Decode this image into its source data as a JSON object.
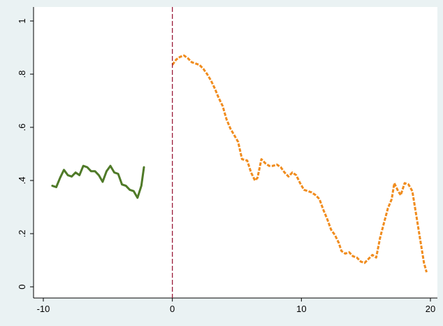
{
  "chart_data": {
    "type": "line",
    "title": "",
    "xlabel": "",
    "ylabel": "",
    "xlim": [
      -10,
      20
    ],
    "ylim": [
      0,
      1
    ],
    "grid": false,
    "legend": "none",
    "xticks": [
      {
        "value": -10,
        "label": "-10"
      },
      {
        "value": 0,
        "label": "0"
      },
      {
        "value": 10,
        "label": "10"
      },
      {
        "value": 20,
        "label": "20"
      }
    ],
    "yticks": [
      {
        "value": 0,
        "label": "0"
      },
      {
        "value": 0.2,
        "label": ".2"
      },
      {
        "value": 0.4,
        "label": ".4"
      },
      {
        "value": 0.6,
        "label": ".6"
      },
      {
        "value": 0.8,
        "label": ".8"
      },
      {
        "value": 1,
        "label": "1"
      }
    ],
    "vline": {
      "x": 0,
      "color": "#9b1b3a",
      "style": "dashed"
    },
    "series": [
      {
        "color": "#4f7a28",
        "style": "solid",
        "points": [
          [
            -9.3,
            0.38
          ],
          [
            -9.0,
            0.375
          ],
          [
            -8.7,
            0.41
          ],
          [
            -8.4,
            0.44
          ],
          [
            -8.1,
            0.42
          ],
          [
            -7.8,
            0.415
          ],
          [
            -7.5,
            0.43
          ],
          [
            -7.2,
            0.42
          ],
          [
            -6.9,
            0.455
          ],
          [
            -6.6,
            0.45
          ],
          [
            -6.3,
            0.435
          ],
          [
            -6.0,
            0.435
          ],
          [
            -5.7,
            0.42
          ],
          [
            -5.4,
            0.395
          ],
          [
            -5.1,
            0.435
          ],
          [
            -4.8,
            0.455
          ],
          [
            -4.5,
            0.43
          ],
          [
            -4.2,
            0.425
          ],
          [
            -3.9,
            0.385
          ],
          [
            -3.6,
            0.38
          ],
          [
            -3.3,
            0.365
          ],
          [
            -3.0,
            0.36
          ],
          [
            -2.7,
            0.335
          ],
          [
            -2.4,
            0.38
          ],
          [
            -2.2,
            0.45
          ]
        ]
      },
      {
        "color": "#f08c1e",
        "style": "dashed",
        "points": [
          [
            0.0,
            0.835
          ],
          [
            0.3,
            0.855
          ],
          [
            0.6,
            0.865
          ],
          [
            0.9,
            0.87
          ],
          [
            1.2,
            0.86
          ],
          [
            1.5,
            0.845
          ],
          [
            1.8,
            0.84
          ],
          [
            2.1,
            0.835
          ],
          [
            2.4,
            0.82
          ],
          [
            2.7,
            0.8
          ],
          [
            3.0,
            0.775
          ],
          [
            3.3,
            0.745
          ],
          [
            3.6,
            0.71
          ],
          [
            3.9,
            0.68
          ],
          [
            4.2,
            0.63
          ],
          [
            4.5,
            0.595
          ],
          [
            4.8,
            0.57
          ],
          [
            5.1,
            0.545
          ],
          [
            5.4,
            0.48
          ],
          [
            5.8,
            0.475
          ],
          [
            6.1,
            0.43
          ],
          [
            6.4,
            0.4
          ],
          [
            6.6,
            0.41
          ],
          [
            6.9,
            0.48
          ],
          [
            7.2,
            0.465
          ],
          [
            7.5,
            0.455
          ],
          [
            7.8,
            0.455
          ],
          [
            8.1,
            0.46
          ],
          [
            8.4,
            0.45
          ],
          [
            8.7,
            0.43
          ],
          [
            9.0,
            0.415
          ],
          [
            9.3,
            0.43
          ],
          [
            9.6,
            0.42
          ],
          [
            9.9,
            0.39
          ],
          [
            10.2,
            0.365
          ],
          [
            10.5,
            0.36
          ],
          [
            10.8,
            0.355
          ],
          [
            11.1,
            0.345
          ],
          [
            11.4,
            0.33
          ],
          [
            11.7,
            0.29
          ],
          [
            12.0,
            0.255
          ],
          [
            12.3,
            0.215
          ],
          [
            12.6,
            0.195
          ],
          [
            12.9,
            0.165
          ],
          [
            13.1,
            0.135
          ],
          [
            13.4,
            0.125
          ],
          [
            13.7,
            0.13
          ],
          [
            14.0,
            0.115
          ],
          [
            14.3,
            0.11
          ],
          [
            14.6,
            0.095
          ],
          [
            14.9,
            0.09
          ],
          [
            15.2,
            0.105
          ],
          [
            15.5,
            0.12
          ],
          [
            15.8,
            0.11
          ],
          [
            16.1,
            0.185
          ],
          [
            16.4,
            0.24
          ],
          [
            16.7,
            0.295
          ],
          [
            17.0,
            0.33
          ],
          [
            17.2,
            0.39
          ],
          [
            17.5,
            0.36
          ],
          [
            17.7,
            0.345
          ],
          [
            18.0,
            0.39
          ],
          [
            18.3,
            0.385
          ],
          [
            18.6,
            0.36
          ],
          [
            18.9,
            0.27
          ],
          [
            19.2,
            0.18
          ],
          [
            19.5,
            0.09
          ],
          [
            19.7,
            0.055
          ]
        ]
      }
    ]
  }
}
